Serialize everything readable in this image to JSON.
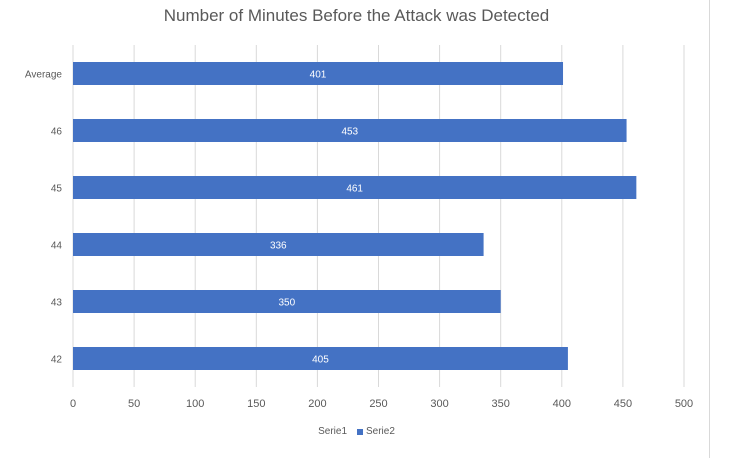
{
  "chart_data": {
    "type": "bar",
    "orientation": "horizontal",
    "title": "Number of Minutes Before the Attack was Detected",
    "categories": [
      "Average",
      "46",
      "45",
      "44",
      "43",
      "42"
    ],
    "series": [
      {
        "name": "Serie1",
        "values": [
          null,
          null,
          null,
          null,
          null,
          null
        ],
        "color": "#4472c4"
      },
      {
        "name": "Serie2",
        "values": [
          401,
          453,
          461,
          336,
          350,
          405
        ],
        "color": "#4472c4"
      }
    ],
    "data_labels": [
      "401",
      "453",
      "461",
      "336",
      "350",
      "405"
    ],
    "xlim": [
      0,
      500
    ],
    "xticks": [
      0,
      50,
      100,
      150,
      200,
      250,
      300,
      350,
      400,
      450,
      500
    ],
    "grid": true,
    "legend_position": "bottom"
  }
}
